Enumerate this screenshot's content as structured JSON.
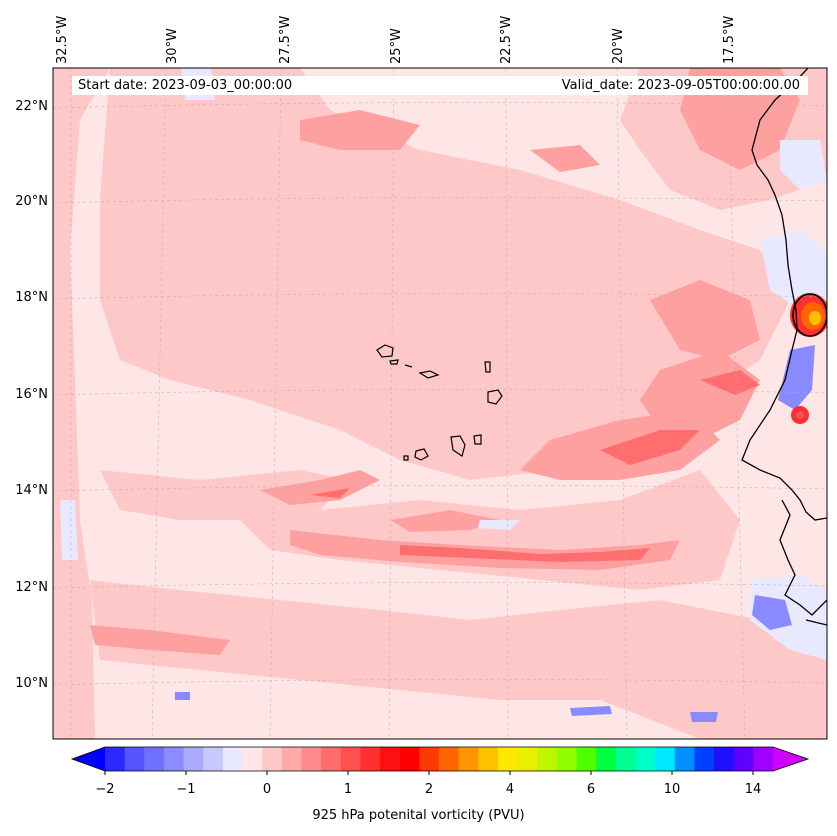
{
  "map": {
    "start_date_text": "Start date: 2023-09-03_00:00:00",
    "valid_date_text": "Valid_date: 2023-09-05T00:00:00.00",
    "lon_labels": [
      "32.5°W",
      "30°W",
      "27.5°W",
      "25°W",
      "22.5°W",
      "20°W",
      "17.5°W"
    ],
    "lat_labels": [
      "22°N",
      "20°N",
      "18°N",
      "16°N",
      "14°N",
      "12°N",
      "10°N"
    ],
    "colors": {
      "background_pv": "#ffe6e6",
      "light_pink": "#ffc8c8",
      "medium_pink": "#ffa0a0",
      "red": "#ff3030",
      "blue_neg": "#8a8aff",
      "light_blue_neg": "#e8e8ff",
      "coast": "#000000"
    }
  },
  "colorbar": {
    "ticks": [
      "−2",
      "−1",
      "0",
      "1",
      "2",
      "4",
      "6",
      "10",
      "14"
    ],
    "label": "925 hPa potenital vorticity (PVU)",
    "colors": [
      "#0000ff",
      "#2a2aff",
      "#5555ff",
      "#7070ff",
      "#8c8cff",
      "#aaaaff",
      "#c8c8ff",
      "#e8e8ff",
      "#ffe6e6",
      "#ffc8c8",
      "#ffaaaa",
      "#ff8c8c",
      "#ff6e6e",
      "#ff5050",
      "#ff3030",
      "#ff1010",
      "#ff0000",
      "#ff3a00",
      "#ff6600",
      "#ff9500",
      "#ffc000",
      "#ffe800",
      "#e8f000",
      "#c0f500",
      "#90ff00",
      "#50ff00",
      "#00ff40",
      "#00ff90",
      "#00ffc8",
      "#00e8ff",
      "#0090ff",
      "#0040ff",
      "#2010ff",
      "#6000ff",
      "#a000ff",
      "#d000ff"
    ]
  }
}
